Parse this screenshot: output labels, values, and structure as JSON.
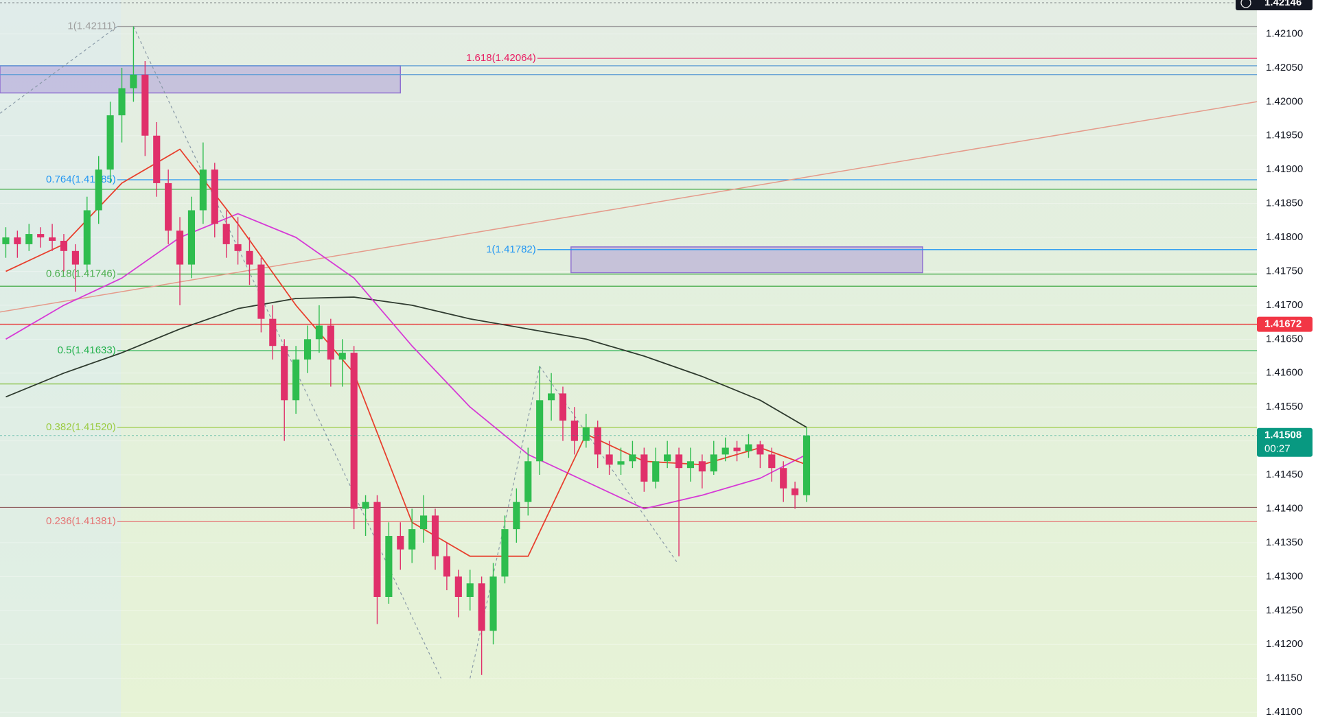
{
  "chart_data": {
    "type": "candlestick",
    "xlim": [
      -0.5,
      107.8
    ],
    "ylim": [
      1.41093,
      1.4215
    ],
    "grid": true,
    "up_color": "#2ebd4e",
    "down_color": "#e0306a",
    "yticks": [
      {
        "value": 1.411,
        "label": "1.41100"
      },
      {
        "value": 1.4115,
        "label": "1.41150"
      },
      {
        "value": 1.412,
        "label": "1.41200"
      },
      {
        "value": 1.4125,
        "label": "1.41250"
      },
      {
        "value": 1.413,
        "label": "1.41300"
      },
      {
        "value": 1.4135,
        "label": "1.41350"
      },
      {
        "value": 1.414,
        "label": "1.41400"
      },
      {
        "value": 1.4145,
        "label": "1.41450"
      },
      {
        "value": 1.415,
        "label": "1.41500"
      },
      {
        "value": 1.4155,
        "label": "1.41550"
      },
      {
        "value": 1.416,
        "label": "1.41600"
      },
      {
        "value": 1.4165,
        "label": "1.41650"
      },
      {
        "value": 1.417,
        "label": "1.41700"
      },
      {
        "value": 1.4175,
        "label": "1.41750"
      },
      {
        "value": 1.418,
        "label": "1.41800"
      },
      {
        "value": 1.4185,
        "label": "1.41850"
      },
      {
        "value": 1.419,
        "label": "1.41900"
      },
      {
        "value": 1.4195,
        "label": "1.41950"
      },
      {
        "value": 1.42,
        "label": "1.42000"
      },
      {
        "value": 1.4205,
        "label": "1.42050"
      },
      {
        "value": 1.421,
        "label": "1.42100"
      }
    ],
    "candles": [
      [
        1.4179,
        1.41815,
        1.4177,
        1.418
      ],
      [
        1.418,
        1.4181,
        1.4177,
        1.4179
      ],
      [
        1.4179,
        1.4182,
        1.4178,
        1.41805
      ],
      [
        1.41805,
        1.41815,
        1.41785,
        1.418
      ],
      [
        1.418,
        1.4182,
        1.4178,
        1.41795
      ],
      [
        1.41795,
        1.41805,
        1.4175,
        1.4178
      ],
      [
        1.4178,
        1.4179,
        1.4172,
        1.4176
      ],
      [
        1.4176,
        1.4186,
        1.4175,
        1.4184
      ],
      [
        1.4184,
        1.4192,
        1.4182,
        1.419
      ],
      [
        1.419,
        1.42,
        1.4188,
        1.4198
      ],
      [
        1.4198,
        1.4205,
        1.4194,
        1.4202
      ],
      [
        1.4202,
        1.42111,
        1.42,
        1.4204
      ],
      [
        1.4204,
        1.4206,
        1.4192,
        1.4195
      ],
      [
        1.4195,
        1.4197,
        1.4186,
        1.4188
      ],
      [
        1.4188,
        1.419,
        1.4179,
        1.4181
      ],
      [
        1.4181,
        1.4183,
        1.417,
        1.4176
      ],
      [
        1.4176,
        1.4186,
        1.4174,
        1.4184
      ],
      [
        1.4184,
        1.4194,
        1.4182,
        1.419
      ],
      [
        1.419,
        1.4191,
        1.418,
        1.4182
      ],
      [
        1.4182,
        1.4184,
        1.4177,
        1.4179
      ],
      [
        1.4179,
        1.4183,
        1.4176,
        1.4178
      ],
      [
        1.4178,
        1.418,
        1.4173,
        1.4176
      ],
      [
        1.4176,
        1.4177,
        1.4166,
        1.4168
      ],
      [
        1.4168,
        1.417,
        1.4162,
        1.4164
      ],
      [
        1.4164,
        1.4165,
        1.415,
        1.4156
      ],
      [
        1.4156,
        1.4164,
        1.4154,
        1.4162
      ],
      [
        1.4162,
        1.4167,
        1.416,
        1.4165
      ],
      [
        1.4165,
        1.417,
        1.4163,
        1.4167
      ],
      [
        1.4167,
        1.4168,
        1.4158,
        1.4162
      ],
      [
        1.4162,
        1.4165,
        1.4158,
        1.4163
      ],
      [
        1.4163,
        1.4164,
        1.4137,
        1.414
      ],
      [
        1.414,
        1.4142,
        1.4136,
        1.4141
      ],
      [
        1.4141,
        1.4142,
        1.4123,
        1.4127
      ],
      [
        1.4127,
        1.4138,
        1.4126,
        1.4136
      ],
      [
        1.4136,
        1.4138,
        1.4131,
        1.4134
      ],
      [
        1.4134,
        1.414,
        1.4132,
        1.4137
      ],
      [
        1.4137,
        1.4142,
        1.4135,
        1.4139
      ],
      [
        1.4139,
        1.414,
        1.4131,
        1.4133
      ],
      [
        1.4133,
        1.4135,
        1.4128,
        1.413
      ],
      [
        1.413,
        1.4131,
        1.4124,
        1.4127
      ],
      [
        1.4127,
        1.4131,
        1.4125,
        1.4129
      ],
      [
        1.4129,
        1.413,
        1.41155,
        1.4122
      ],
      [
        1.4122,
        1.4132,
        1.412,
        1.413
      ],
      [
        1.413,
        1.4139,
        1.4129,
        1.4137
      ],
      [
        1.4137,
        1.4143,
        1.4135,
        1.4141
      ],
      [
        1.4141,
        1.4149,
        1.4139,
        1.4147
      ],
      [
        1.4147,
        1.4161,
        1.4145,
        1.4156
      ],
      [
        1.4156,
        1.416,
        1.4153,
        1.4157
      ],
      [
        1.4157,
        1.4158,
        1.415,
        1.4153
      ],
      [
        1.4153,
        1.4155,
        1.4148,
        1.415
      ],
      [
        1.415,
        1.4154,
        1.4149,
        1.4152
      ],
      [
        1.4152,
        1.4153,
        1.4146,
        1.4148
      ],
      [
        1.4148,
        1.415,
        1.4145,
        1.41465
      ],
      [
        1.41465,
        1.4149,
        1.4145,
        1.4147
      ],
      [
        1.4147,
        1.415,
        1.4146,
        1.4148
      ],
      [
        1.4148,
        1.4149,
        1.41425,
        1.4144
      ],
      [
        1.4144,
        1.4149,
        1.4143,
        1.4147
      ],
      [
        1.4147,
        1.415,
        1.4146,
        1.4148
      ],
      [
        1.4148,
        1.4149,
        1.4133,
        1.4146
      ],
      [
        1.4146,
        1.4149,
        1.4144,
        1.4147
      ],
      [
        1.4147,
        1.4148,
        1.4143,
        1.41455
      ],
      [
        1.41455,
        1.415,
        1.4145,
        1.4148
      ],
      [
        1.4148,
        1.41505,
        1.4147,
        1.4149
      ],
      [
        1.4149,
        1.415,
        1.4147,
        1.41485
      ],
      [
        1.41485,
        1.4151,
        1.41475,
        1.41495
      ],
      [
        1.41495,
        1.415,
        1.4146,
        1.4148
      ],
      [
        1.4148,
        1.4149,
        1.4144,
        1.4146
      ],
      [
        1.4146,
        1.4147,
        1.4141,
        1.4143
      ],
      [
        1.4143,
        1.4144,
        1.414,
        1.4142
      ],
      [
        1.4142,
        1.4152,
        1.4141,
        1.41508
      ]
    ],
    "ma_x": [
      0,
      5,
      10,
      15,
      20,
      25,
      30,
      35,
      40,
      45,
      50,
      55,
      60,
      65,
      69
    ],
    "series": [
      {
        "color": "#2f3b2f",
        "values": [
          1.41565,
          1.416,
          1.4163,
          1.41665,
          1.41695,
          1.4171,
          1.41712,
          1.417,
          1.4168,
          1.41665,
          1.4165,
          1.41625,
          1.41595,
          1.4156,
          1.4152
        ]
      },
      {
        "color": "#d63ad6",
        "values": [
          1.4165,
          1.417,
          1.4174,
          1.418,
          1.41835,
          1.418,
          1.4174,
          1.4164,
          1.4155,
          1.4148,
          1.4144,
          1.414,
          1.4142,
          1.41445,
          1.4148
        ]
      },
      {
        "color": "#e8402e",
        "values": [
          1.4175,
          1.4179,
          1.4188,
          1.4193,
          1.4182,
          1.417,
          1.416,
          1.4138,
          1.4133,
          1.4133,
          1.4151,
          1.4147,
          1.41465,
          1.4149,
          1.41465
        ]
      }
    ],
    "zones": [
      {
        "from": -0.5,
        "to": 34,
        "top": 1.42053,
        "bottom": 1.42013,
        "color": "#8e6fd0"
      },
      {
        "from": 48.7,
        "to": 79,
        "top": 1.41786,
        "bottom": 1.41748,
        "color": "#8e6fd0"
      }
    ],
    "levels": [
      {
        "value": 1.42111,
        "label": "1(1.42111)",
        "color": "#9e9e9e",
        "from": 9.6
      },
      {
        "value": 1.42064,
        "label": "1.618(1.42064)",
        "color": "#e91e63",
        "from": 45.8
      },
      {
        "value": 1.42053,
        "color": "#5b9bd5",
        "from": -0.5
      },
      {
        "value": 1.4204,
        "color": "#5b9bd5",
        "from": -0.5
      },
      {
        "value": 1.41885,
        "label": "0.764(1.41885)",
        "color": "#2196f3",
        "from": 9.6
      },
      {
        "value": 1.41871,
        "color": "#4caf50",
        "from": -0.5
      },
      {
        "value": 1.41782,
        "label": "1(1.41782)",
        "color": "#2196f3",
        "from": 45.8
      },
      {
        "value": 1.41746,
        "label": "0.618(1.41746)",
        "color": "#4caf50",
        "from": 9.6
      },
      {
        "value": 1.41728,
        "color": "#4caf50",
        "from": -0.5
      },
      {
        "value": 1.41672,
        "color": "#e53935",
        "from": -0.5
      },
      {
        "value": 1.41633,
        "label": "0.5(1.41633)",
        "color": "#22b14c",
        "from": 9.6
      },
      {
        "value": 1.41584,
        "color": "#8bc34a",
        "from": -0.5
      },
      {
        "value": 1.4152,
        "label": "0.382(1.41520)",
        "color": "#9ccc45",
        "from": 9.6
      },
      {
        "value": 1.41402,
        "color": "#8d5a5a",
        "from": -0.5
      },
      {
        "value": 1.41381,
        "label": "0.236(1.41381)",
        "color": "#e57373",
        "from": 9.6
      }
    ],
    "trend_line": {
      "color": "#e59a8a",
      "points": [
        [
          -0.5,
          1.4169
        ],
        [
          107.8,
          1.42
        ]
      ]
    },
    "anchor_lines": {
      "color": "#8a9aa8",
      "paths": [
        [
          [
            -0.5,
            1.41983
          ],
          [
            9.6,
            1.42111
          ]
        ],
        [
          [
            11,
            1.42111
          ],
          [
            37.5,
            1.4115
          ]
        ],
        [
          [
            40,
            1.4115
          ],
          [
            46,
            1.4161
          ]
        ],
        [
          [
            46,
            1.4161
          ],
          [
            57.8,
            1.41322
          ]
        ]
      ]
    },
    "price_tags": [
      {
        "value": 1.42146,
        "label": "1.42146",
        "color": "#131722"
      },
      {
        "value": 1.41672,
        "label": "1.41672",
        "color": "#f23645"
      },
      {
        "value": 1.41508,
        "label": "1.41508",
        "sublabel": "00:27",
        "color": "#089981"
      }
    ]
  }
}
